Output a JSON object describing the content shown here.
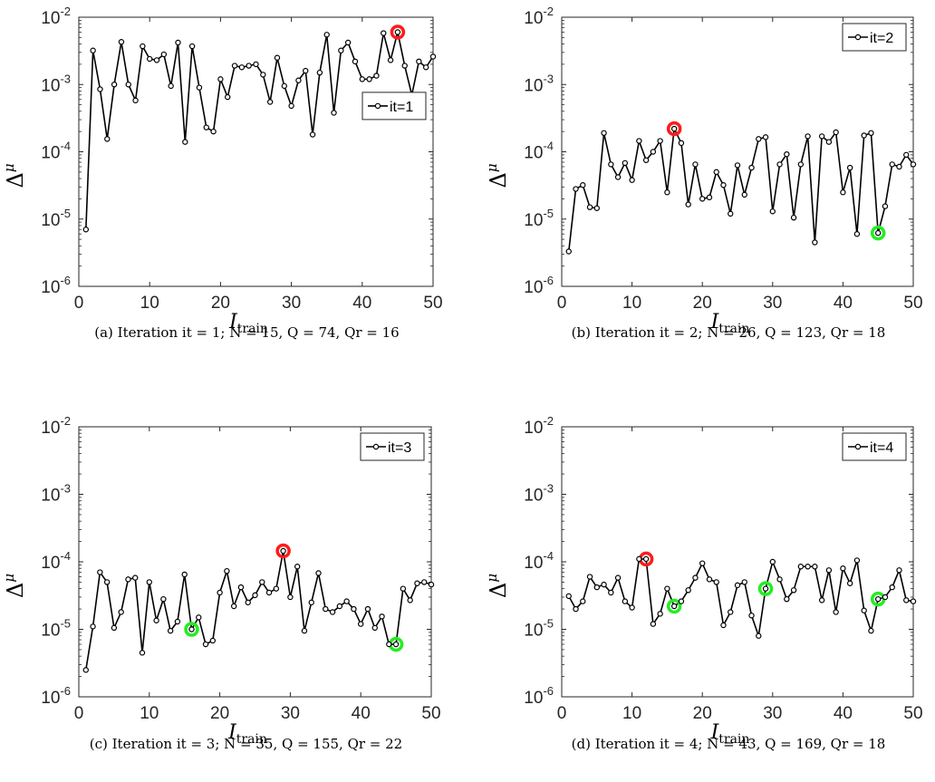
{
  "chart_data": [
    {
      "type": "line",
      "xlabel": "I",
      "xlabel_sub": "train",
      "ylabel": "Δ",
      "ylabel_sub": "μ",
      "ylog": true,
      "xlim": [
        0,
        50
      ],
      "ylim": [
        1e-06,
        0.01
      ],
      "xticks": [
        0,
        10,
        20,
        30,
        40,
        50
      ],
      "yticks": [
        {
          "base": "10",
          "exp": "-6",
          "v": 1e-06
        },
        {
          "base": "10",
          "exp": "-5",
          "v": 1e-05
        },
        {
          "base": "10",
          "exp": "-4",
          "v": 0.0001
        },
        {
          "base": "10",
          "exp": "-3",
          "v": 0.001
        },
        {
          "base": "10",
          "exp": "-2",
          "v": 0.01
        }
      ],
      "legend": "it=1",
      "legend_position": "right-middle",
      "caption": "(a) Iteration it = 1; N = 15, Q = 74, Qr = 16",
      "series_color": "#000000",
      "x": [
        1,
        2,
        3,
        4,
        5,
        6,
        7,
        8,
        9,
        10,
        11,
        12,
        13,
        14,
        15,
        16,
        17,
        18,
        19,
        20,
        21,
        22,
        23,
        24,
        25,
        26,
        27,
        28,
        29,
        30,
        31,
        32,
        33,
        34,
        35,
        36,
        37,
        38,
        39,
        40,
        41,
        42,
        43,
        44,
        45,
        46,
        47,
        48,
        49,
        50
      ],
      "y": [
        7e-06,
        0.0032,
        0.00085,
        0.000155,
        0.001,
        0.0043,
        0.001,
        0.00058,
        0.0037,
        0.0024,
        0.0023,
        0.0028,
        0.00095,
        0.0042,
        0.00014,
        0.0037,
        0.0009,
        0.00023,
        0.0002,
        0.0012,
        0.00065,
        0.0019,
        0.0018,
        0.0019,
        0.002,
        0.0014,
        0.00055,
        0.0025,
        0.00095,
        0.00048,
        0.00115,
        0.0016,
        0.00018,
        0.0015,
        0.0055,
        0.00038,
        0.0032,
        0.0042,
        0.0022,
        0.0012,
        0.0012,
        0.00135,
        0.0058,
        0.0023,
        0.006,
        0.0019,
        0.0007,
        0.0022,
        0.0018,
        0.0026
      ],
      "highlight_red": [
        45
      ],
      "highlight_green": []
    },
    {
      "type": "line",
      "xlabel": "I",
      "xlabel_sub": "train",
      "ylabel": "Δ",
      "ylabel_sub": "μ",
      "ylog": true,
      "xlim": [
        0,
        50
      ],
      "ylim": [
        1e-06,
        0.01
      ],
      "xticks": [
        0,
        10,
        20,
        30,
        40,
        50
      ],
      "yticks": [
        {
          "base": "10",
          "exp": "-6",
          "v": 1e-06
        },
        {
          "base": "10",
          "exp": "-5",
          "v": 1e-05
        },
        {
          "base": "10",
          "exp": "-4",
          "v": 0.0001
        },
        {
          "base": "10",
          "exp": "-3",
          "v": 0.001
        },
        {
          "base": "10",
          "exp": "-2",
          "v": 0.01
        }
      ],
      "legend": "it=2",
      "legend_position": "top-right",
      "caption": "(b) Iteration it = 2; N = 26, Q = 123, Qr = 18",
      "series_color": "#000000",
      "x": [
        1,
        2,
        3,
        4,
        5,
        6,
        7,
        8,
        9,
        10,
        11,
        12,
        13,
        14,
        15,
        16,
        17,
        18,
        19,
        20,
        21,
        22,
        23,
        24,
        25,
        26,
        27,
        28,
        29,
        30,
        31,
        32,
        33,
        34,
        35,
        36,
        37,
        38,
        39,
        40,
        41,
        42,
        43,
        44,
        45,
        46,
        47,
        48,
        49,
        50
      ],
      "y": [
        3.3e-06,
        2.8e-05,
        3.2e-05,
        1.5e-05,
        1.45e-05,
        0.00019,
        6.5e-05,
        4.2e-05,
        6.8e-05,
        3.8e-05,
        0.000145,
        7.5e-05,
        0.0001,
        0.000145,
        2.5e-05,
        0.00022,
        0.000135,
        1.65e-05,
        6.5e-05,
        2e-05,
        2.1e-05,
        5e-05,
        3.2e-05,
        1.2e-05,
        6.3e-05,
        2.3e-05,
        5.8e-05,
        0.000155,
        0.000165,
        1.3e-05,
        6.5e-05,
        9.2e-05,
        1.05e-05,
        6.5e-05,
        0.00017,
        4.5e-06,
        0.00017,
        0.00014,
        0.000195,
        2.5e-05,
        5.8e-05,
        6e-06,
        0.000175,
        0.00019,
        6.2e-06,
        1.55e-05,
        6.5e-05,
        6e-05,
        9e-05,
        6.5e-05
      ],
      "highlight_red": [
        16
      ],
      "highlight_green": [
        45
      ]
    },
    {
      "type": "line",
      "xlabel": "I",
      "xlabel_sub": "train",
      "ylabel": "Δ",
      "ylabel_sub": "μ",
      "ylog": true,
      "xlim": [
        0,
        50
      ],
      "ylim": [
        1e-06,
        0.01
      ],
      "xticks": [
        0,
        10,
        20,
        30,
        40,
        50
      ],
      "yticks": [
        {
          "base": "10",
          "exp": "-6",
          "v": 1e-06
        },
        {
          "base": "10",
          "exp": "-5",
          "v": 1e-05
        },
        {
          "base": "10",
          "exp": "-4",
          "v": 0.0001
        },
        {
          "base": "10",
          "exp": "-3",
          "v": 0.001
        },
        {
          "base": "10",
          "exp": "-2",
          "v": 0.01
        }
      ],
      "legend": "it=3",
      "legend_position": "top-right",
      "caption": "(c) Iteration it = 3; N = 35, Q = 155, Qr = 22",
      "series_color": "#000000",
      "x": [
        1,
        2,
        3,
        4,
        5,
        6,
        7,
        8,
        9,
        10,
        11,
        12,
        13,
        14,
        15,
        16,
        17,
        18,
        19,
        20,
        21,
        22,
        23,
        24,
        25,
        26,
        27,
        28,
        29,
        30,
        31,
        32,
        33,
        34,
        35,
        36,
        37,
        38,
        39,
        40,
        41,
        42,
        43,
        44,
        45,
        46,
        47,
        48,
        49,
        50
      ],
      "y": [
        2.5e-06,
        1.1e-05,
        7e-05,
        5e-05,
        1.05e-05,
        1.8e-05,
        5.5e-05,
        5.8e-05,
        4.5e-06,
        5e-05,
        1.35e-05,
        2.8e-05,
        9.5e-06,
        1.3e-05,
        6.5e-05,
        1e-05,
        1.5e-05,
        6e-06,
        6.8e-06,
        3.5e-05,
        7.3e-05,
        2.2e-05,
        4.2e-05,
        2.5e-05,
        3.2e-05,
        5e-05,
        3.5e-05,
        4e-05,
        0.000145,
        3e-05,
        8.5e-05,
        9.5e-06,
        2.5e-05,
        6.8e-05,
        2e-05,
        1.8e-05,
        2.2e-05,
        2.6e-05,
        2e-05,
        1.2e-05,
        2e-05,
        1.05e-05,
        1.55e-05,
        6e-06,
        6e-06,
        4e-05,
        2.7e-05,
        4.8e-05,
        5e-05,
        4.6e-05
      ],
      "highlight_red": [
        29
      ],
      "highlight_green": [
        16,
        45
      ]
    },
    {
      "type": "line",
      "xlabel": "I",
      "xlabel_sub": "train",
      "ylabel": "Δ",
      "ylabel_sub": "μ",
      "ylog": true,
      "xlim": [
        0,
        50
      ],
      "ylim": [
        1e-06,
        0.01
      ],
      "xticks": [
        0,
        10,
        20,
        30,
        40,
        50
      ],
      "yticks": [
        {
          "base": "10",
          "exp": "-6",
          "v": 1e-06
        },
        {
          "base": "10",
          "exp": "-5",
          "v": 1e-05
        },
        {
          "base": "10",
          "exp": "-4",
          "v": 0.0001
        },
        {
          "base": "10",
          "exp": "-3",
          "v": 0.001
        },
        {
          "base": "10",
          "exp": "-2",
          "v": 0.01
        }
      ],
      "legend": "it=4",
      "legend_position": "top-right",
      "caption": "(d) Iteration it = 4; N = 43, Q = 169, Qr = 18",
      "series_color": "#000000",
      "x": [
        1,
        2,
        3,
        4,
        5,
        6,
        7,
        8,
        9,
        10,
        11,
        12,
        13,
        14,
        15,
        16,
        17,
        18,
        19,
        20,
        21,
        22,
        23,
        24,
        25,
        26,
        27,
        28,
        29,
        30,
        31,
        32,
        33,
        34,
        35,
        36,
        37,
        38,
        39,
        40,
        41,
        42,
        43,
        44,
        45,
        46,
        47,
        48,
        49,
        50
      ],
      "y": [
        3.1e-05,
        2e-05,
        2.6e-05,
        6e-05,
        4.2e-05,
        4.6e-05,
        3.5e-05,
        5.8e-05,
        2.6e-05,
        2.1e-05,
        0.00011,
        0.00011,
        1.2e-05,
        1.7e-05,
        4e-05,
        2.2e-05,
        2.6e-05,
        3.8e-05,
        5.8e-05,
        9.5e-05,
        5.5e-05,
        5e-05,
        1.15e-05,
        1.8e-05,
        4.5e-05,
        5e-05,
        1.6e-05,
        8e-06,
        4e-05,
        0.0001,
        5.5e-05,
        2.8e-05,
        3.8e-05,
        8.5e-05,
        8.5e-05,
        8.5e-05,
        2.7e-05,
        7.5e-05,
        1.8e-05,
        8e-05,
        4.8e-05,
        0.000105,
        1.9e-05,
        9.5e-06,
        2.8e-05,
        3e-05,
        4.2e-05,
        7.5e-05,
        2.7e-05,
        2.6e-05
      ],
      "highlight_red": [
        12
      ],
      "highlight_green": [
        16,
        29,
        45
      ]
    }
  ]
}
